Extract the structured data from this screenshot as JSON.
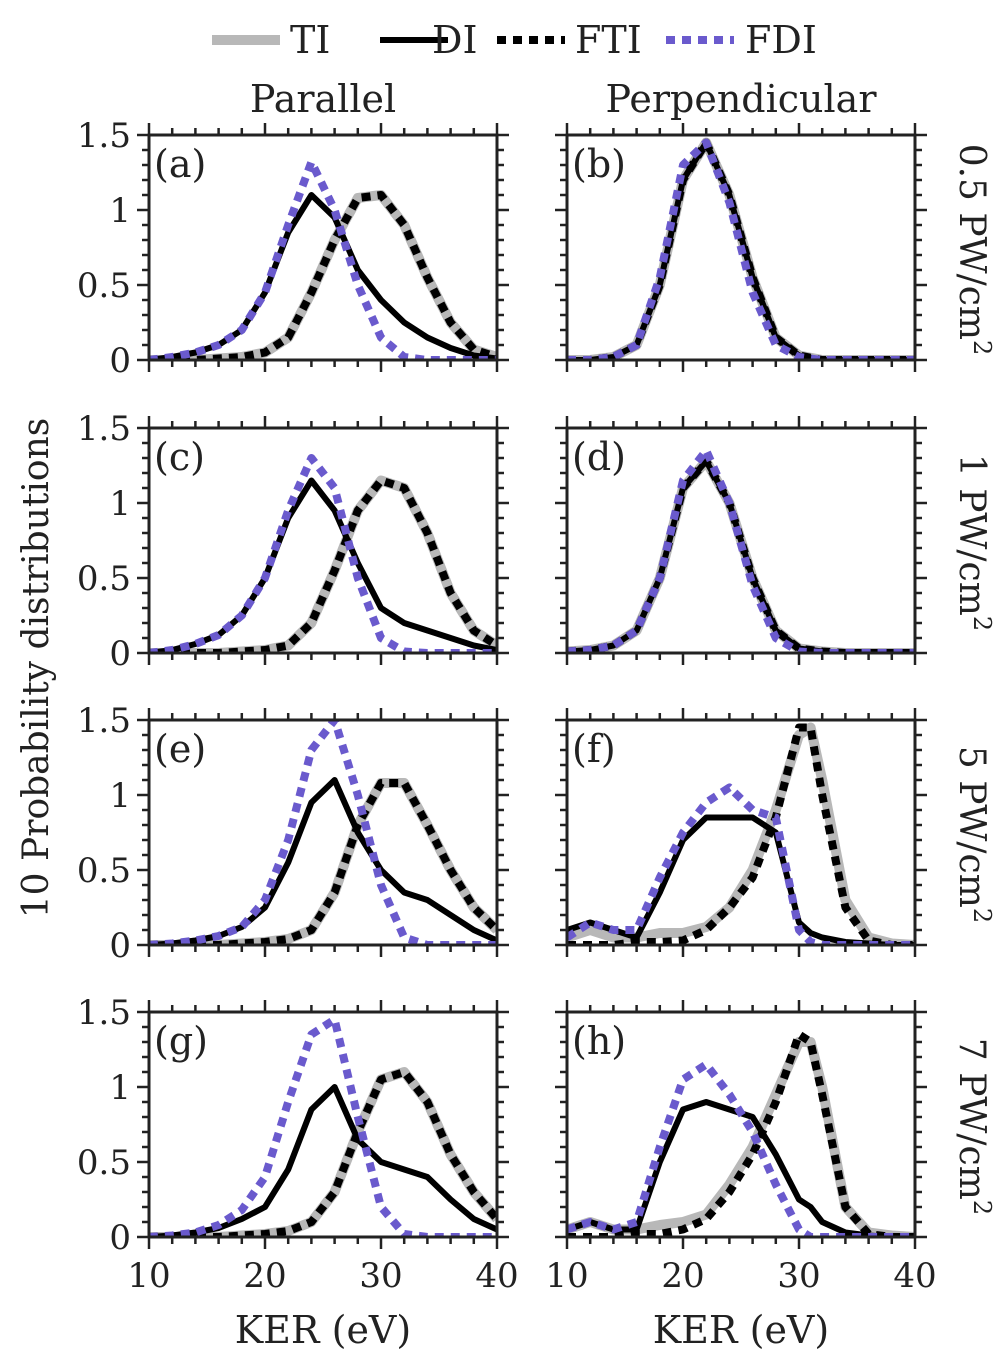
{
  "legend": {
    "location": "top-center",
    "items": [
      {
        "label": "TI",
        "color": "#b8b8b8",
        "style": "solid"
      },
      {
        "label": "DI",
        "color": "#000000",
        "style": "solid"
      },
      {
        "label": "FTI",
        "color": "#000000",
        "style": "dotted"
      },
      {
        "label": "FDI",
        "color": "#6a5acd",
        "style": "dotted"
      }
    ]
  },
  "columns": {
    "left": "Parallel",
    "right": "Perpendicular"
  },
  "rows": [
    {
      "value": "0.5",
      "unit": "PW/cm",
      "exp": "2"
    },
    {
      "value": "1",
      "unit": "PW/cm",
      "exp": "2"
    },
    {
      "value": "5",
      "unit": "PW/cm",
      "exp": "2"
    },
    {
      "value": "7",
      "unit": "PW/cm",
      "exp": "2"
    }
  ],
  "ylabel": "10 Probability distributions",
  "xlabel": "KER (eV)",
  "xlim": [
    10,
    40
  ],
  "ylim": [
    0,
    1.5
  ],
  "xticks": [
    "10",
    "20",
    "30",
    "40"
  ],
  "yticks": [
    "0",
    "0.5",
    "1",
    "1.5"
  ],
  "chart_data": [
    {
      "panel": "(a)",
      "type": "line",
      "orientation": "Parallel",
      "intensity": "0.5 PW/cm2",
      "x": [
        10,
        12,
        14,
        16,
        18,
        20,
        22,
        24,
        26,
        28,
        30,
        32,
        34,
        36,
        38,
        40
      ],
      "series": [
        {
          "name": "TI",
          "values": [
            0,
            0,
            0,
            0.01,
            0.02,
            0.05,
            0.15,
            0.45,
            0.8,
            1.08,
            1.1,
            0.9,
            0.55,
            0.25,
            0.07,
            0.02
          ]
        },
        {
          "name": "DI",
          "values": [
            0,
            0.02,
            0.05,
            0.1,
            0.2,
            0.45,
            0.85,
            1.1,
            0.95,
            0.6,
            0.4,
            0.25,
            0.15,
            0.08,
            0.03,
            0.01
          ]
        },
        {
          "name": "FTI",
          "values": [
            0,
            0,
            0,
            0.01,
            0.02,
            0.05,
            0.15,
            0.45,
            0.8,
            1.08,
            1.1,
            0.9,
            0.55,
            0.25,
            0.07,
            0.02
          ]
        },
        {
          "name": "FDI",
          "values": [
            0,
            0.02,
            0.05,
            0.1,
            0.2,
            0.45,
            0.9,
            1.32,
            1.0,
            0.5,
            0.15,
            0.02,
            0,
            0,
            0,
            0
          ]
        }
      ]
    },
    {
      "panel": "(b)",
      "type": "line",
      "orientation": "Perpendicular",
      "intensity": "0.5 PW/cm2",
      "x": [
        10,
        12,
        14,
        16,
        18,
        20,
        22,
        24,
        26,
        28,
        30,
        32,
        34,
        36,
        38,
        40
      ],
      "series": [
        {
          "name": "TI",
          "values": [
            0,
            0,
            0.02,
            0.1,
            0.5,
            1.2,
            1.45,
            1.1,
            0.55,
            0.15,
            0.03,
            0,
            0,
            0,
            0,
            0
          ]
        },
        {
          "name": "DI",
          "values": [
            0,
            0,
            0.02,
            0.1,
            0.5,
            1.2,
            1.45,
            1.1,
            0.55,
            0.15,
            0.03,
            0,
            0,
            0,
            0,
            0
          ]
        },
        {
          "name": "FTI",
          "values": [
            0,
            0,
            0.02,
            0.1,
            0.5,
            1.2,
            1.45,
            1.1,
            0.55,
            0.15,
            0.03,
            0,
            0,
            0,
            0,
            0
          ]
        },
        {
          "name": "FDI",
          "values": [
            0,
            0,
            0.02,
            0.1,
            0.55,
            1.3,
            1.45,
            1.05,
            0.45,
            0.1,
            0.02,
            0,
            0,
            0,
            0,
            0
          ]
        }
      ]
    },
    {
      "panel": "(c)",
      "type": "line",
      "orientation": "Parallel",
      "intensity": "1 PW/cm2",
      "x": [
        10,
        12,
        14,
        16,
        18,
        20,
        22,
        24,
        26,
        28,
        30,
        32,
        34,
        36,
        38,
        40
      ],
      "series": [
        {
          "name": "TI",
          "values": [
            0,
            0,
            0,
            0,
            0.01,
            0.02,
            0.05,
            0.2,
            0.55,
            0.95,
            1.15,
            1.1,
            0.8,
            0.4,
            0.15,
            0.05
          ]
        },
        {
          "name": "DI",
          "values": [
            0,
            0.02,
            0.06,
            0.12,
            0.25,
            0.5,
            0.9,
            1.15,
            0.95,
            0.6,
            0.3,
            0.2,
            0.15,
            0.1,
            0.05,
            0.02
          ]
        },
        {
          "name": "FTI",
          "values": [
            0,
            0,
            0,
            0,
            0.01,
            0.02,
            0.05,
            0.2,
            0.55,
            0.95,
            1.15,
            1.1,
            0.8,
            0.4,
            0.15,
            0.05
          ]
        },
        {
          "name": "FDI",
          "values": [
            0,
            0.02,
            0.06,
            0.12,
            0.25,
            0.5,
            0.95,
            1.3,
            1.1,
            0.5,
            0.1,
            0.01,
            0,
            0,
            0,
            0
          ]
        }
      ]
    },
    {
      "panel": "(d)",
      "type": "line",
      "orientation": "Perpendicular",
      "intensity": "1 PW/cm2",
      "x": [
        10,
        12,
        14,
        16,
        18,
        20,
        22,
        24,
        26,
        28,
        30,
        32,
        34,
        36,
        38,
        40
      ],
      "series": [
        {
          "name": "TI",
          "values": [
            0.01,
            0.02,
            0.05,
            0.15,
            0.5,
            1.1,
            1.28,
            1.0,
            0.5,
            0.15,
            0.03,
            0.01,
            0,
            0,
            0,
            0
          ]
        },
        {
          "name": "DI",
          "values": [
            0.01,
            0.02,
            0.05,
            0.15,
            0.5,
            1.1,
            1.28,
            1.0,
            0.5,
            0.15,
            0.03,
            0.01,
            0,
            0,
            0,
            0
          ]
        },
        {
          "name": "FTI",
          "values": [
            0.01,
            0.02,
            0.05,
            0.15,
            0.5,
            1.1,
            1.28,
            1.0,
            0.5,
            0.15,
            0.03,
            0.01,
            0,
            0,
            0,
            0
          ]
        },
        {
          "name": "FDI",
          "values": [
            0.01,
            0.02,
            0.05,
            0.15,
            0.5,
            1.15,
            1.35,
            1.0,
            0.45,
            0.1,
            0.01,
            0,
            0,
            0,
            0,
            0
          ]
        }
      ]
    },
    {
      "panel": "(e)",
      "type": "line",
      "orientation": "Parallel",
      "intensity": "5 PW/cm2",
      "x": [
        10,
        12,
        14,
        16,
        18,
        20,
        22,
        24,
        26,
        28,
        30,
        32,
        34,
        36,
        38,
        40
      ],
      "series": [
        {
          "name": "TI",
          "values": [
            0,
            0,
            0,
            0,
            0.01,
            0.02,
            0.04,
            0.1,
            0.35,
            0.8,
            1.08,
            1.08,
            0.8,
            0.5,
            0.25,
            0.1
          ]
        },
        {
          "name": "DI",
          "values": [
            0,
            0.01,
            0.03,
            0.06,
            0.12,
            0.25,
            0.55,
            0.95,
            1.1,
            0.75,
            0.5,
            0.35,
            0.3,
            0.2,
            0.1,
            0.03
          ]
        },
        {
          "name": "FTI",
          "values": [
            0,
            0,
            0,
            0,
            0.01,
            0.02,
            0.04,
            0.1,
            0.35,
            0.8,
            1.08,
            1.08,
            0.8,
            0.5,
            0.25,
            0.1
          ]
        },
        {
          "name": "FDI",
          "values": [
            0,
            0.01,
            0.03,
            0.06,
            0.12,
            0.3,
            0.7,
            1.3,
            1.5,
            1.0,
            0.4,
            0.05,
            0,
            0,
            0,
            0
          ]
        }
      ]
    },
    {
      "panel": "(f)",
      "type": "line",
      "orientation": "Perpendicular",
      "intensity": "5 PW/cm2",
      "x": [
        10,
        12,
        14,
        16,
        18,
        20,
        22,
        24,
        26,
        28,
        30,
        31,
        32,
        34,
        36,
        38,
        40
      ],
      "series": [
        {
          "name": "TI",
          "values": [
            0.05,
            0.1,
            0.05,
            0.05,
            0.08,
            0.08,
            0.12,
            0.25,
            0.5,
            0.9,
            1.4,
            1.45,
            1.1,
            0.3,
            0.05,
            0.01,
            0
          ]
        },
        {
          "name": "DI",
          "values": [
            0.1,
            0.15,
            0.1,
            0.05,
            0.35,
            0.7,
            0.85,
            0.85,
            0.85,
            0.75,
            0.15,
            0.08,
            0.05,
            0.02,
            0.01,
            0,
            0
          ]
        },
        {
          "name": "FTI",
          "values": [
            0,
            0,
            0,
            0.02,
            0.02,
            0.03,
            0.1,
            0.25,
            0.45,
            0.85,
            1.45,
            1.45,
            1.0,
            0.25,
            0.03,
            0,
            0
          ]
        },
        {
          "name": "FDI",
          "values": [
            0.05,
            0.15,
            0.1,
            0.1,
            0.45,
            0.75,
            0.95,
            1.05,
            0.9,
            0.85,
            0.1,
            0.02,
            0,
            0,
            0,
            0,
            0
          ]
        }
      ]
    },
    {
      "panel": "(g)",
      "type": "line",
      "orientation": "Parallel",
      "intensity": "7 PW/cm2",
      "x": [
        10,
        12,
        14,
        16,
        18,
        20,
        22,
        24,
        26,
        28,
        30,
        32,
        34,
        36,
        38,
        40
      ],
      "series": [
        {
          "name": "TI",
          "values": [
            0,
            0,
            0,
            0,
            0.01,
            0.02,
            0.04,
            0.1,
            0.3,
            0.7,
            1.05,
            1.1,
            0.9,
            0.55,
            0.3,
            0.12
          ]
        },
        {
          "name": "DI",
          "values": [
            0,
            0.01,
            0.03,
            0.06,
            0.12,
            0.2,
            0.45,
            0.85,
            1.0,
            0.65,
            0.5,
            0.45,
            0.4,
            0.25,
            0.12,
            0.05
          ]
        },
        {
          "name": "FTI",
          "values": [
            0,
            0,
            0,
            0,
            0.01,
            0.02,
            0.04,
            0.1,
            0.3,
            0.7,
            1.05,
            1.1,
            0.9,
            0.55,
            0.3,
            0.12
          ]
        },
        {
          "name": "FDI",
          "values": [
            0,
            0.01,
            0.03,
            0.08,
            0.18,
            0.4,
            0.9,
            1.35,
            1.45,
            0.8,
            0.2,
            0.02,
            0,
            0,
            0,
            0
          ]
        }
      ]
    },
    {
      "panel": "(h)",
      "type": "line",
      "orientation": "Perpendicular",
      "intensity": "7 PW/cm2",
      "x": [
        10,
        12,
        14,
        16,
        18,
        20,
        22,
        24,
        26,
        28,
        30,
        31,
        32,
        34,
        36,
        38,
        40
      ],
      "series": [
        {
          "name": "TI",
          "values": [
            0.05,
            0.1,
            0.05,
            0.05,
            0.08,
            0.1,
            0.15,
            0.35,
            0.6,
            0.95,
            1.3,
            1.3,
            1.0,
            0.2,
            0.03,
            0.01,
            0
          ]
        },
        {
          "name": "DI",
          "values": [
            0.05,
            0.1,
            0.05,
            0.05,
            0.5,
            0.85,
            0.9,
            0.85,
            0.8,
            0.55,
            0.25,
            0.2,
            0.1,
            0.03,
            0.01,
            0,
            0
          ]
        },
        {
          "name": "FTI",
          "values": [
            0,
            0,
            0,
            0.02,
            0.02,
            0.05,
            0.12,
            0.3,
            0.55,
            0.9,
            1.35,
            1.3,
            0.95,
            0.2,
            0.02,
            0,
            0
          ]
        },
        {
          "name": "FDI",
          "values": [
            0.05,
            0.1,
            0.05,
            0.1,
            0.6,
            1.05,
            1.15,
            0.95,
            0.7,
            0.35,
            0.05,
            0,
            0,
            0,
            0,
            0,
            0
          ]
        }
      ]
    }
  ]
}
